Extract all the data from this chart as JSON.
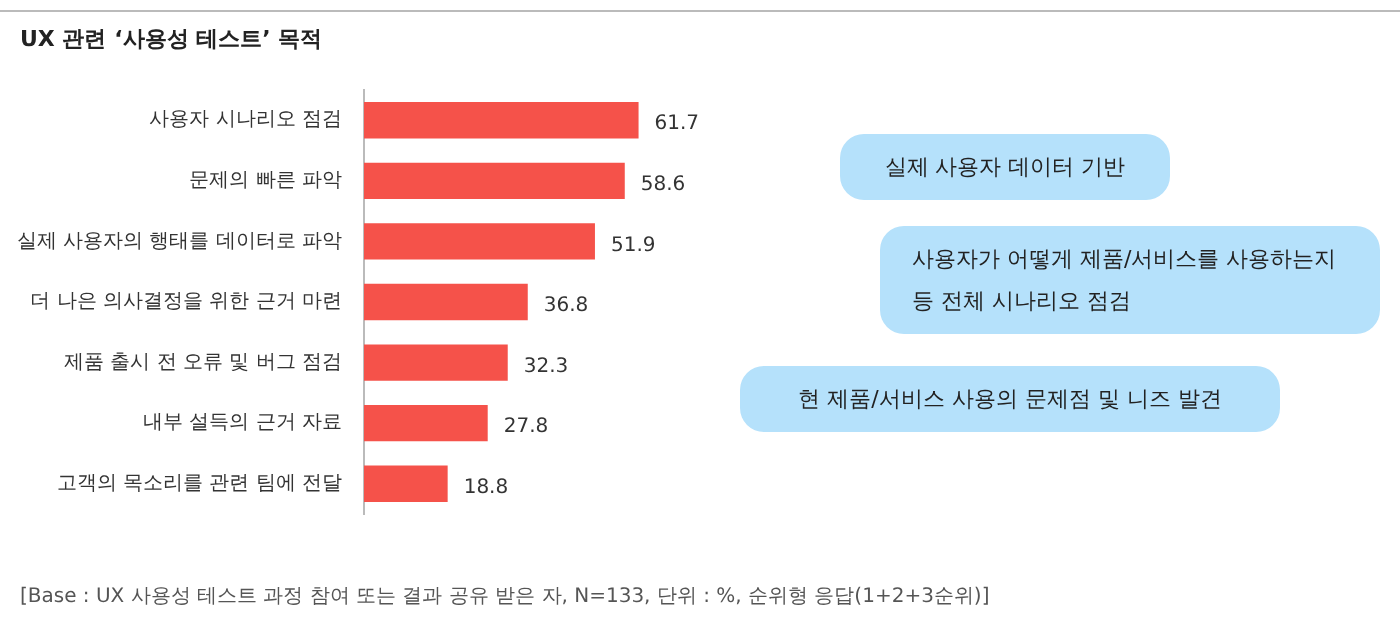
{
  "chart_data": {
    "type": "bar",
    "orientation": "horizontal",
    "title": "UX 관련 ‘사용성 테스트’ 목적",
    "categories": [
      "사용자 시나리오 점검",
      "문제의 빠른 파악",
      "실제 사용자의 행태를 데이터로 파악",
      "더 나은 의사결정을 위한 근거 마련",
      "제품 출시 전 오류 및 버그 점검",
      "내부 설득의 근거 자료",
      "고객의 목소리를 관련 팀에 전달"
    ],
    "values": [
      61.7,
      58.6,
      51.9,
      36.8,
      32.3,
      27.8,
      18.8
    ],
    "color": "#f5524a",
    "data_labels": true,
    "legend": false,
    "annotations": [
      "실제 사용자 데이터 기반",
      "사용자가 어떻게 제품/서비스를 사용하는지 등 전체 시나리오 점검",
      "현 제품/서비스 사용의 문제점 및 니즈 발견",
      "[Base : UX 사용성 테스트 과정 참여 또는 결과 공유 받은 자, N=133, 단위 : %, 순위형 응답(1+2+3순위)]"
    ]
  }
}
